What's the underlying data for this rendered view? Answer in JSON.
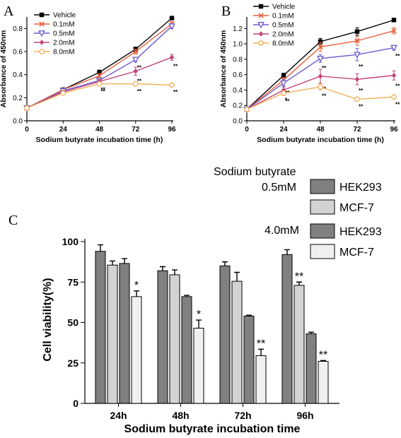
{
  "chart_data": [
    {
      "panel": "A",
      "type": "line",
      "xlabel": "Sodium butyrate incubation time (h)",
      "ylabel": "Absorbance of 450nm",
      "x": [
        0,
        24,
        48,
        72,
        96
      ],
      "xlim": [
        0,
        96
      ],
      "ylim": [
        0,
        0.9
      ],
      "xticks": [
        "0",
        "24",
        "48",
        "72",
        "96"
      ],
      "yticks": [
        "0.0",
        "0.2",
        "0.4",
        "0.6",
        "0.8"
      ],
      "legend_position": "top-left",
      "series": [
        {
          "name": "Vehicle",
          "color": "#000000",
          "marker": "square",
          "values": [
            0.11,
            0.27,
            0.42,
            0.62,
            0.89
          ],
          "errors": [
            0.005,
            0.01,
            0.02,
            0.02,
            0.015
          ],
          "sig": [
            "",
            "",
            "",
            "",
            ""
          ]
        },
        {
          "name": "0.1mM",
          "color": "#e8603c",
          "marker": "x",
          "values": [
            0.11,
            0.27,
            0.39,
            0.6,
            0.84
          ],
          "errors": [
            0.005,
            0.01,
            0.02,
            0.02,
            0.02
          ],
          "sig": [
            "",
            "",
            "",
            "",
            ""
          ]
        },
        {
          "name": "0.5mM",
          "color": "#6a5acd",
          "marker": "triangle-down",
          "values": [
            0.11,
            0.26,
            0.35,
            0.53,
            0.82
          ],
          "errors": [
            0.005,
            0.01,
            0.02,
            0.02,
            0.02
          ],
          "sig": [
            "",
            "",
            "",
            "**",
            ""
          ]
        },
        {
          "name": "2.0mM",
          "color": "#c4457a",
          "marker": "diamond",
          "values": [
            0.11,
            0.25,
            0.34,
            0.43,
            0.55
          ],
          "errors": [
            0.005,
            0.01,
            0.02,
            0.035,
            0.025
          ],
          "sig": [
            "",
            "",
            "**",
            "**",
            "**"
          ]
        },
        {
          "name": "8.0mM",
          "color": "#f2b055",
          "marker": "circle",
          "values": [
            0.11,
            0.24,
            0.32,
            0.32,
            0.31
          ],
          "errors": [
            0.005,
            0.01,
            0.015,
            0.015,
            0.01
          ],
          "sig": [
            "",
            "",
            "**",
            "**",
            "**"
          ]
        }
      ]
    },
    {
      "panel": "B",
      "type": "line",
      "xlabel": "Sodium butyrate incubation time (h)",
      "ylabel": "Absorbance of 450nm",
      "x": [
        0,
        24,
        48,
        72,
        96
      ],
      "xlim": [
        0,
        96
      ],
      "ylim": [
        0,
        1.35
      ],
      "xticks": [
        "0",
        "24",
        "48",
        "72",
        "96"
      ],
      "yticks": [
        "0.0",
        "0.2",
        "0.4",
        "0.6",
        "0.8",
        "1.0",
        "1.2"
      ],
      "legend_position": "top-left",
      "series": [
        {
          "name": "Vehicle",
          "color": "#000000",
          "marker": "square",
          "values": [
            0.15,
            0.59,
            1.03,
            1.16,
            1.31
          ],
          "errors": [
            0.01,
            0.03,
            0.04,
            0.05,
            0.02
          ],
          "sig": [
            "",
            "",
            "",
            "",
            ""
          ]
        },
        {
          "name": "0.1mM",
          "color": "#e8603c",
          "marker": "x",
          "values": [
            0.15,
            0.53,
            0.96,
            1.04,
            1.17
          ],
          "errors": [
            0.01,
            0.03,
            0.06,
            0.06,
            0.04
          ],
          "sig": [
            "",
            "",
            "",
            "",
            ""
          ]
        },
        {
          "name": "0.5mM",
          "color": "#6a5acd",
          "marker": "triangle-down",
          "values": [
            0.15,
            0.49,
            0.81,
            0.86,
            0.95
          ],
          "errors": [
            0.01,
            0.05,
            0.05,
            0.08,
            0.03
          ],
          "sig": [
            "",
            "**",
            "**",
            "**",
            "**"
          ]
        },
        {
          "name": "2.0mM",
          "color": "#c4457a",
          "marker": "diamond",
          "values": [
            0.15,
            0.4,
            0.58,
            0.54,
            0.59
          ],
          "errors": [
            0.01,
            0.05,
            0.09,
            0.07,
            0.06
          ],
          "sig": [
            "",
            "*",
            "**",
            "**",
            "**"
          ]
        },
        {
          "name": "8.0mM",
          "color": "#f2b055",
          "marker": "circle",
          "values": [
            0.15,
            0.36,
            0.44,
            0.28,
            0.31
          ],
          "errors": [
            0.01,
            0.03,
            0.04,
            0.02,
            0.02
          ],
          "sig": [
            "",
            "**",
            "**",
            "**",
            "**"
          ]
        }
      ]
    },
    {
      "panel": "C",
      "type": "bar",
      "xlabel": "Sodium butyrate incubation time",
      "ylabel": "Cell viability(%)",
      "categories": [
        "24h",
        "48h",
        "72h",
        "96h"
      ],
      "ylim": [
        0,
        100
      ],
      "yticks": [
        "0",
        "25",
        "50",
        "75",
        "100"
      ],
      "legend_title": "Sodium butyrate",
      "legend_groups": [
        "0.5mM",
        "4.0mM"
      ],
      "series": [
        {
          "name": "HEK293",
          "group": "0.5mM",
          "color": "#808080",
          "values": [
            94,
            82,
            85,
            92
          ],
          "errors": [
            4,
            2.5,
            2.5,
            3
          ],
          "sig": [
            "",
            "",
            "",
            ""
          ]
        },
        {
          "name": "MCF-7",
          "group": "0.5mM",
          "color": "#d3d3d3",
          "values": [
            85.5,
            79.5,
            75.5,
            73
          ],
          "errors": [
            2.5,
            3,
            5.5,
            2
          ],
          "sig": [
            "",
            "",
            "",
            "**"
          ]
        },
        {
          "name": "HEK293",
          "group": "4.0mM",
          "color": "#808080",
          "values": [
            86.5,
            66,
            54,
            43
          ],
          "errors": [
            3,
            0.8,
            0.5,
            1
          ],
          "sig": [
            "",
            "",
            "",
            ""
          ]
        },
        {
          "name": "MCF-7",
          "group": "4.0mM",
          "color": "#f0f0f0",
          "values": [
            66,
            46.5,
            29.5,
            26
          ],
          "errors": [
            3.5,
            5,
            4,
            0.5
          ],
          "sig": [
            "*",
            "*",
            "**",
            "**"
          ]
        }
      ]
    }
  ]
}
